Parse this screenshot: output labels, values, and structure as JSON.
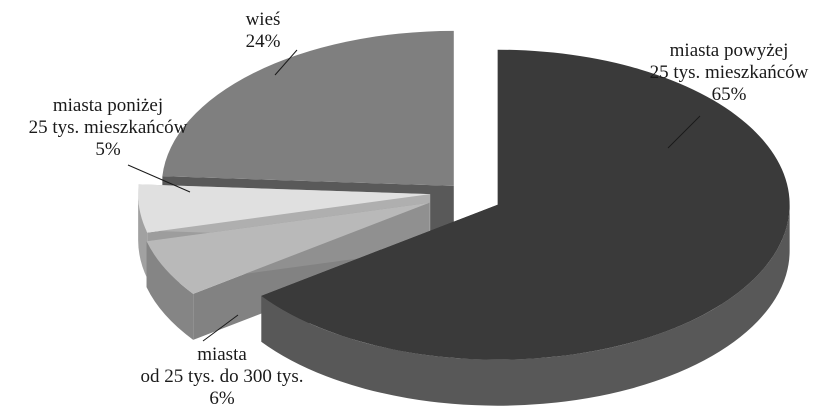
{
  "chart_data": {
    "type": "pie",
    "style": "3d-exploded",
    "slices": [
      {
        "label": [
          "miasta powyżej",
          "25 tys. mieszkańców"
        ],
        "value": 65,
        "value_text": "65%",
        "color": "#3a3a3a"
      },
      {
        "label": [
          "miasta",
          "od 25 tys. do 300 tys."
        ],
        "value": 6,
        "value_text": "6%",
        "color": "#b9b9b9"
      },
      {
        "label": [
          "miasta poniżej",
          "25 tys. mieszkańców"
        ],
        "value": 5,
        "value_text": "5%",
        "color": "#e0e0e0"
      },
      {
        "label": [
          "wieś"
        ],
        "value": 24,
        "value_text": "24%",
        "color": "#7f7f7f"
      }
    ]
  }
}
